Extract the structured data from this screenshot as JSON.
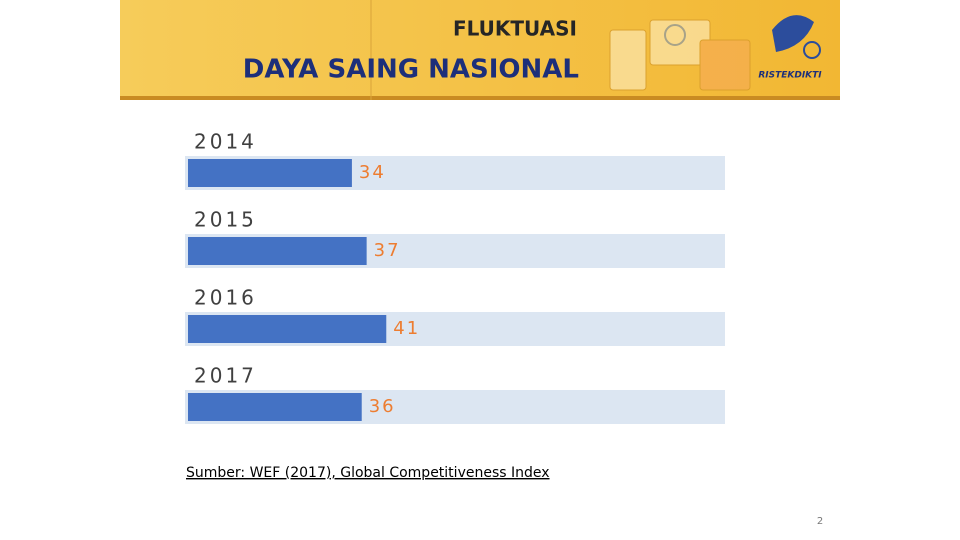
{
  "header": {
    "subtitle": "FLUKTUASI",
    "title": "DAYA SAING NASIONAL",
    "logo_text": "RISTEKDIKTI"
  },
  "chart_data": {
    "type": "barh",
    "categories": [
      "2014",
      "2015",
      "2016",
      "2017"
    ],
    "values": [
      34,
      37,
      41,
      36
    ],
    "color": "#4472c4",
    "track_color": "#dce6f2",
    "label_color": "#ed7d31",
    "xlim": [
      0,
      110
    ]
  },
  "source": "Sumber: WEF (2017), Global Competitiveness Index",
  "page_number": "2"
}
